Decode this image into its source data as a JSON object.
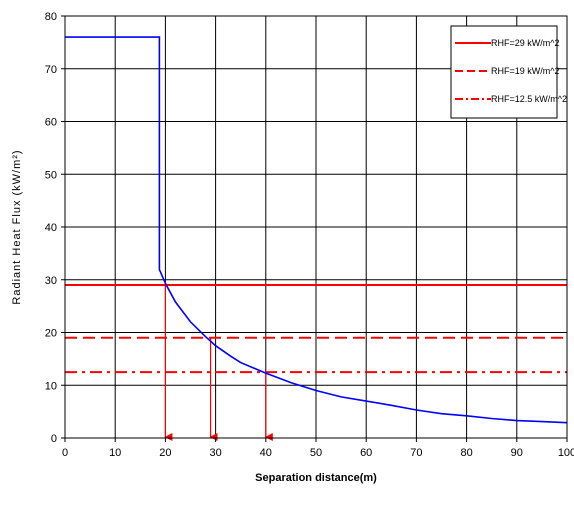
{
  "chart_data": {
    "type": "line",
    "xlabel": "Separation distance(m)",
    "ylabel": "Radiant Heat Flux (kW/m²)",
    "xlim": [
      0,
      100
    ],
    "ylim": [
      0,
      80
    ],
    "x_ticks": [
      0,
      10,
      20,
      30,
      40,
      50,
      60,
      70,
      80,
      90,
      100
    ],
    "y_ticks": [
      0,
      10,
      20,
      30,
      40,
      50,
      60,
      70,
      80
    ],
    "grid": true,
    "legend_position": "top-right",
    "curve": {
      "color": "#0000ff",
      "x": [
        0,
        18.8,
        18.8,
        19,
        20,
        22,
        25,
        28,
        30,
        33,
        35,
        40,
        45,
        50,
        55,
        60,
        65,
        70,
        75,
        80,
        85,
        90,
        95,
        100
      ],
      "y": [
        76,
        76,
        31.9,
        31.5,
        29.3,
        25.8,
        22.0,
        19.2,
        17.5,
        15.5,
        14.3,
        12.3,
        10.5,
        9.0,
        7.8,
        7.0,
        6.2,
        5.3,
        4.6,
        4.2,
        3.7,
        3.3,
        3.1,
        2.9
      ]
    },
    "series": [
      {
        "name": "RHF=29 kW/m^2",
        "value": 29,
        "style": "solid",
        "color": "#ff0000"
      },
      {
        "name": "RHF=19 kW/m^2",
        "value": 19,
        "style": "dashed",
        "color": "#ff0000"
      },
      {
        "name": "RHF=12.5 kW/m^2",
        "value": 12.5,
        "style": "dashdot",
        "color": "#ff0000"
      }
    ],
    "arrows": [
      {
        "x": 20,
        "from_y": 29
      },
      {
        "x": 29,
        "from_y": 19
      },
      {
        "x": 40,
        "from_y": 12.5
      }
    ]
  }
}
